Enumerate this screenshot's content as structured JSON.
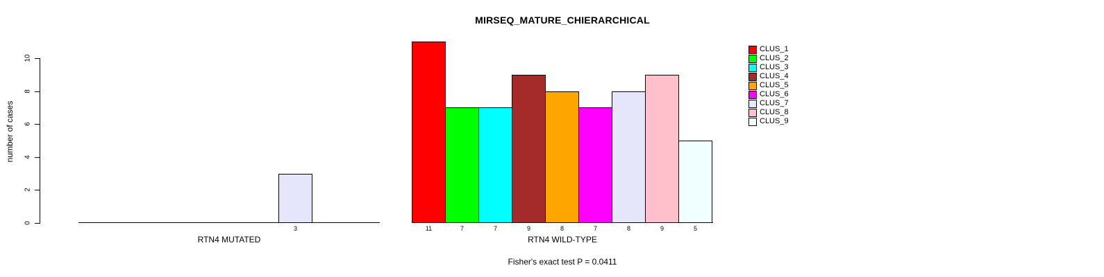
{
  "chart_data": {
    "type": "bar",
    "title": "MIRSEQ_MATURE_CHIERARCHICAL",
    "ylabel": "number of cases",
    "ylim": [
      0,
      10
    ],
    "yticks": [
      0,
      2,
      4,
      6,
      8,
      10
    ],
    "grid": false,
    "legend_position": "right",
    "categories": [
      "CLUS_1",
      "CLUS_2",
      "CLUS_3",
      "CLUS_4",
      "CLUS_5",
      "CLUS_6",
      "CLUS_7",
      "CLUS_8",
      "CLUS_9"
    ],
    "colors": [
      "#FF0000",
      "#00FF00",
      "#00FFFF",
      "#A52A2A",
      "#FFA500",
      "#FF00FF",
      "#E6E6FA",
      "#FFC0CB",
      "#F0FFFF"
    ],
    "panels": [
      {
        "xlabel": "RTN4 MUTATED",
        "values": [
          0,
          0,
          0,
          0,
          0,
          0,
          3,
          0,
          0
        ]
      },
      {
        "xlabel": "RTN4 WILD-TYPE",
        "values": [
          11,
          7,
          7,
          9,
          8,
          7,
          8,
          9,
          5
        ]
      }
    ],
    "annotation": "Fisher's exact test P = 0.0411"
  }
}
